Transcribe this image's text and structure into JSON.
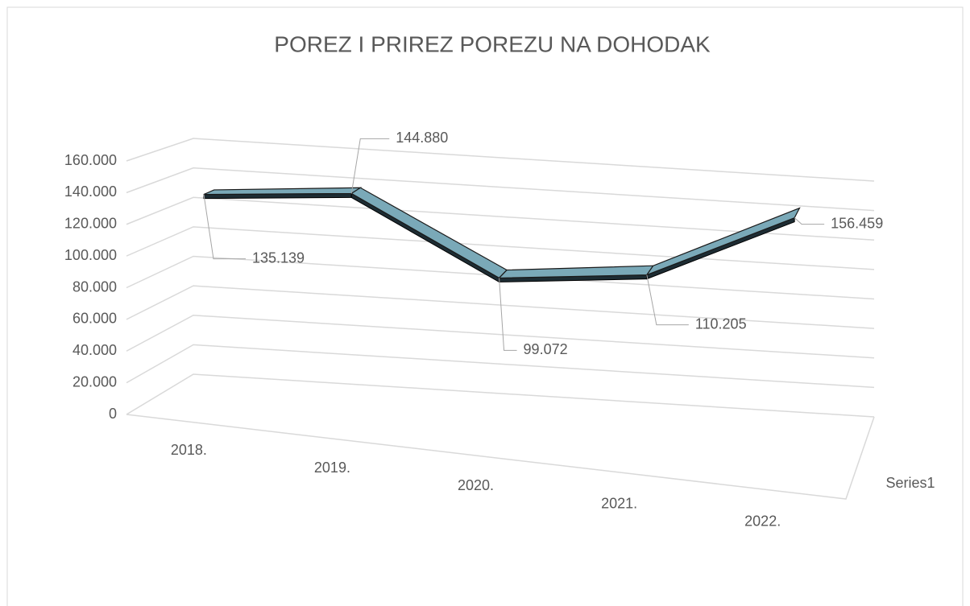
{
  "chart_data": {
    "type": "line3d",
    "title": "POREZ I PRIREZ POREZU NA DOHODAK",
    "categories": [
      "2018.",
      "2019.",
      "2020.",
      "2021.",
      "2022."
    ],
    "series": [
      {
        "name": "Series1",
        "color": "#7aa9b8",
        "values": [
          135139,
          144880,
          99072,
          110205,
          156459
        ],
        "value_labels": [
          "135.139",
          "144.880",
          "99.072",
          "110.205",
          "156.459"
        ]
      }
    ],
    "ylim": [
      0,
      160000
    ],
    "yticks": [
      0,
      {
        "value": 20000,
        "label": "20.000"
      },
      {
        "value": 40000,
        "label": "40.000"
      },
      {
        "value": 60000,
        "label": "60.000"
      },
      {
        "value": 80000,
        "label": "80.000"
      },
      {
        "value": 100000,
        "label": "100.000"
      },
      {
        "value": 120000,
        "label": "120.000"
      },
      {
        "value": 140000,
        "label": "140.000"
      },
      {
        "value": 160000,
        "label": "160.000"
      }
    ],
    "grid": true
  }
}
